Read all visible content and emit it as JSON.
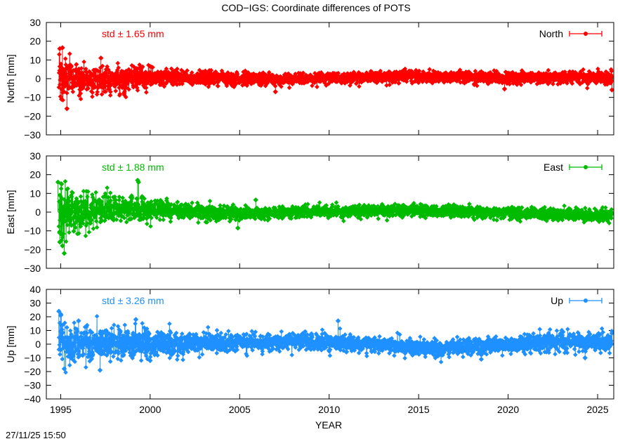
{
  "title": "COD−IGS: Coordinate differences of POTS",
  "xlabel": "YEAR",
  "footer_timestamp": "27/11/25 15:50",
  "chart_data": [
    {
      "type": "scatter",
      "component": "North",
      "legend": "North",
      "ylabel": "North [mm]",
      "std_text": "std ± 1.65 mm",
      "std_mm": 1.65,
      "color": "#ff0000",
      "xlim": [
        1994.2,
        2025.9
      ],
      "ylim": [
        -30,
        30
      ],
      "yticks": [
        -30,
        -20,
        -10,
        0,
        10,
        20,
        30
      ],
      "series_shape": [
        [
          1994.9,
          0,
          7
        ],
        [
          1995.3,
          0,
          6
        ],
        [
          1996.0,
          0,
          4
        ],
        [
          1997.0,
          0,
          3.5
        ],
        [
          1998.0,
          -0.5,
          3.2
        ],
        [
          1999.0,
          0,
          3
        ],
        [
          2000.0,
          0.5,
          2.6
        ],
        [
          2001.0,
          0.5,
          2.2
        ],
        [
          2002.0,
          0.8,
          2.0
        ],
        [
          2003.0,
          0.6,
          1.9
        ],
        [
          2004.0,
          0.3,
          1.8
        ],
        [
          2005.0,
          0.0,
          1.7
        ],
        [
          2006.0,
          -0.2,
          1.6
        ],
        [
          2007.0,
          -0.5,
          1.6
        ],
        [
          2008.0,
          -0.3,
          1.5
        ],
        [
          2009.0,
          0.0,
          1.5
        ],
        [
          2010.0,
          0.3,
          1.5
        ],
        [
          2011.0,
          0.7,
          1.5
        ],
        [
          2012.0,
          1.0,
          1.5
        ],
        [
          2013.0,
          1.2,
          1.5
        ],
        [
          2014.0,
          1.2,
          1.5
        ],
        [
          2015.0,
          1.3,
          1.5
        ],
        [
          2016.0,
          1.2,
          1.5
        ],
        [
          2017.0,
          1.0,
          1.5
        ],
        [
          2018.0,
          0.8,
          1.5
        ],
        [
          2019.0,
          0.5,
          1.5
        ],
        [
          2020.0,
          0.3,
          1.5
        ],
        [
          2021.0,
          0.3,
          1.6
        ],
        [
          2022.0,
          0.5,
          1.6
        ],
        [
          2023.0,
          0.7,
          1.7
        ],
        [
          2024.0,
          0.8,
          1.8
        ],
        [
          2025.0,
          0.6,
          1.8
        ],
        [
          2025.8,
          0.5,
          1.9
        ]
      ],
      "outliers": [
        [
          1994.95,
          16
        ],
        [
          1995.1,
          16.5
        ],
        [
          1995.35,
          -16
        ],
        [
          1995.05,
          -11
        ],
        [
          1997.25,
          11
        ],
        [
          1999.5,
          5.5
        ],
        [
          2000.0,
          6.5
        ],
        [
          2007.0,
          -7
        ],
        [
          2019.8,
          -5.5
        ],
        [
          2025.8,
          -6
        ]
      ]
    },
    {
      "type": "scatter",
      "component": "East",
      "legend": "East",
      "ylabel": "East [mm]",
      "std_text": "std ± 1.88 mm",
      "std_mm": 1.88,
      "color": "#00bb00",
      "xlim": [
        1994.2,
        2025.9
      ],
      "ylim": [
        -30,
        30
      ],
      "yticks": [
        -30,
        -20,
        -10,
        0,
        10,
        20,
        30
      ],
      "series_shape": [
        [
          1994.9,
          0,
          8
        ],
        [
          1995.3,
          0,
          7
        ],
        [
          1996.0,
          0.5,
          5
        ],
        [
          1997.0,
          1.0,
          4
        ],
        [
          1998.0,
          1.5,
          3.5
        ],
        [
          1999.0,
          2.0,
          3.5
        ],
        [
          2000.0,
          1.5,
          3.0
        ],
        [
          2001.0,
          1.0,
          2.5
        ],
        [
          2002.0,
          0.5,
          2.2
        ],
        [
          2003.0,
          0.0,
          2.0
        ],
        [
          2004.0,
          -0.5,
          1.8
        ],
        [
          2005.0,
          -0.5,
          1.7
        ],
        [
          2006.0,
          -0.5,
          1.6
        ],
        [
          2007.0,
          -0.3,
          1.6
        ],
        [
          2008.0,
          0.0,
          1.5
        ],
        [
          2009.0,
          0.2,
          1.5
        ],
        [
          2010.0,
          0.3,
          1.5
        ],
        [
          2011.0,
          0.3,
          1.5
        ],
        [
          2012.0,
          0.5,
          1.5
        ],
        [
          2013.0,
          0.8,
          1.5
        ],
        [
          2014.0,
          0.8,
          1.5
        ],
        [
          2015.0,
          0.8,
          1.5
        ],
        [
          2016.0,
          0.5,
          1.5
        ],
        [
          2017.0,
          0.3,
          1.5
        ],
        [
          2018.0,
          0.0,
          1.5
        ],
        [
          2019.0,
          -0.3,
          1.5
        ],
        [
          2020.0,
          -0.5,
          1.5
        ],
        [
          2021.0,
          -0.8,
          1.6
        ],
        [
          2022.0,
          -1.0,
          1.6
        ],
        [
          2023.0,
          -1.3,
          1.6
        ],
        [
          2024.0,
          -1.5,
          1.7
        ],
        [
          2025.0,
          -1.5,
          1.8
        ],
        [
          2025.8,
          -1.5,
          1.8
        ]
      ],
      "outliers": [
        [
          1994.85,
          16
        ],
        [
          1995.05,
          15
        ],
        [
          1995.2,
          -22
        ],
        [
          1995.1,
          -18
        ],
        [
          1994.95,
          -16
        ],
        [
          1999.3,
          17
        ],
        [
          1999.35,
          16
        ],
        [
          2005.9,
          6.5
        ],
        [
          2004.9,
          -8.5
        ],
        [
          2025.8,
          -1
        ]
      ]
    },
    {
      "type": "scatter",
      "component": "Up",
      "legend": "Up",
      "ylabel": "Up [mm]",
      "std_text": "std ± 3.26 mm",
      "std_mm": 3.26,
      "color": "#1e90ff",
      "xlim": [
        1994.2,
        2025.9
      ],
      "ylim": [
        -40,
        40
      ],
      "yticks": [
        -40,
        -30,
        -20,
        -10,
        0,
        10,
        20,
        30,
        40
      ],
      "series_shape": [
        [
          1994.9,
          1,
          9
        ],
        [
          1995.3,
          1,
          8
        ],
        [
          1996.0,
          1,
          7
        ],
        [
          1997.0,
          1,
          6.5
        ],
        [
          1998.0,
          0.5,
          6.0
        ],
        [
          1999.0,
          0.5,
          5.5
        ],
        [
          2000.0,
          0.5,
          5.0
        ],
        [
          2001.0,
          0.5,
          4.5
        ],
        [
          2002.0,
          0.5,
          4.0
        ],
        [
          2003.0,
          0.5,
          3.8
        ],
        [
          2004.0,
          0.5,
          3.5
        ],
        [
          2005.0,
          0.5,
          3.2
        ],
        [
          2006.0,
          1.0,
          3.0
        ],
        [
          2007.0,
          1.5,
          3.0
        ],
        [
          2008.0,
          2.0,
          3.0
        ],
        [
          2009.0,
          2.0,
          3.0
        ],
        [
          2010.0,
          1.8,
          3.0
        ],
        [
          2011.0,
          1.0,
          3.0
        ],
        [
          2012.0,
          0.0,
          3.0
        ],
        [
          2013.0,
          -1.0,
          3.0
        ],
        [
          2014.0,
          -2.0,
          3.0
        ],
        [
          2015.0,
          -2.5,
          3.0
        ],
        [
          2016.0,
          -3.0,
          3.0
        ],
        [
          2017.0,
          -2.5,
          3.0
        ],
        [
          2018.0,
          -1.5,
          3.0
        ],
        [
          2019.0,
          -0.5,
          3.0
        ],
        [
          2020.0,
          0.0,
          3.0
        ],
        [
          2021.0,
          0.5,
          3.2
        ],
        [
          2022.0,
          1.0,
          3.3
        ],
        [
          2023.0,
          2.0,
          3.5
        ],
        [
          2024.0,
          2.0,
          3.5
        ],
        [
          2025.0,
          1.5,
          3.5
        ],
        [
          2025.8,
          1.0,
          3.5
        ]
      ],
      "outliers": [
        [
          1994.9,
          24
        ],
        [
          1995.0,
          21
        ],
        [
          1995.2,
          -18
        ],
        [
          1997.2,
          -19
        ],
        [
          1996.0,
          17
        ],
        [
          1999.2,
          18
        ],
        [
          2000.0,
          -12
        ],
        [
          2010.5,
          17
        ],
        [
          2018.5,
          -11
        ],
        [
          2024.3,
          -10
        ],
        [
          2023.0,
          10
        ],
        [
          2025.8,
          8
        ]
      ]
    }
  ]
}
